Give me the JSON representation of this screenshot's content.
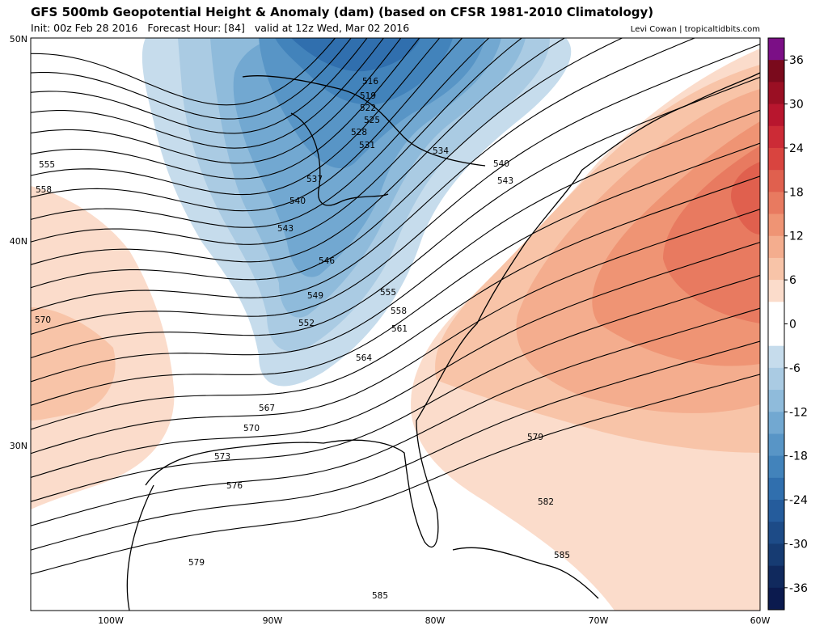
{
  "header": {
    "title": "GFS 500mb Geopotential Height & Anomaly (dam) (based on CFSR 1981-2010 Climatology)",
    "subtitle": "Init: 00z Feb 28 2016   Forecast Hour: [84]   valid at 12z Wed, Mar 02 2016",
    "credit": "Levi Cowan | tropicaltidbits.com"
  },
  "map": {
    "lat_labels": [
      "50N",
      "40N",
      "30N"
    ],
    "lon_labels": [
      "100W",
      "90W",
      "80W",
      "70W",
      "60W"
    ],
    "contour_labels": [
      "516",
      "519",
      "522",
      "525",
      "528",
      "531",
      "534",
      "537",
      "540",
      "540",
      "543",
      "543",
      "546",
      "549",
      "552",
      "555",
      "555",
      "558",
      "558",
      "561",
      "564",
      "567",
      "570",
      "570",
      "573",
      "576",
      "579",
      "579",
      "582",
      "585",
      "585"
    ]
  },
  "colorbar": {
    "lim": [
      -39,
      39
    ],
    "ticks": [
      36,
      30,
      24,
      18,
      12,
      6,
      0,
      -6,
      -12,
      -18,
      -24,
      -30,
      -36
    ],
    "colors": [
      "#7b0f86",
      "#7a0a1c",
      "#9a0f23",
      "#b8162e",
      "#cc2b36",
      "#d9443f",
      "#e0604e",
      "#e87a60",
      "#ef9474",
      "#f4ad8e",
      "#f8c4a8",
      "#fbdccb",
      "#ffffff",
      "#ffffff",
      "#c6dcec",
      "#aacbe3",
      "#8fbbdb",
      "#72a8d1",
      "#5895c6",
      "#4283bb",
      "#306fae",
      "#255c9c",
      "#1d4b87",
      "#163b72",
      "#10295d",
      "#0b1a4e"
    ]
  }
}
